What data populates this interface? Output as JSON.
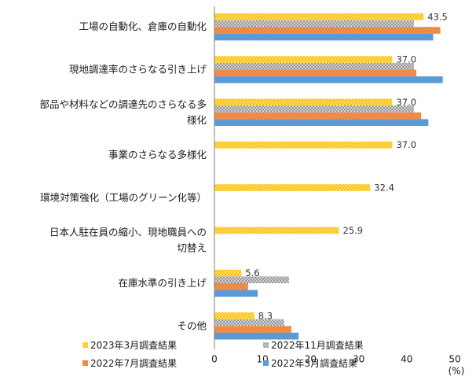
{
  "chart_data": {
    "type": "bar",
    "orientation": "horizontal",
    "categories": [
      [
        "工場の自動化、倉庫の自動化"
      ],
      [
        "現地調達率のさらなる引き上げ"
      ],
      [
        "部品や材料などの調達先のさらなる多",
        "様化"
      ],
      [
        "事業のさらなる多様化"
      ],
      [
        "環境対策強化（工場のグリーン化等）"
      ],
      [
        "日本人駐在員の縮小、現地職員への",
        "切替え"
      ],
      [
        "在庫水準の引き上げ"
      ],
      [
        "その他"
      ]
    ],
    "series": [
      {
        "name": "2023年3月調査結果",
        "color": "#FFC000",
        "pattern": "dots",
        "values": [
          43.5,
          37.0,
          37.0,
          37.0,
          32.4,
          25.9,
          5.6,
          8.3
        ],
        "data_labels": [
          "43.5",
          "37.0",
          "37.0",
          "37.0",
          "32.4",
          "25.9",
          "5.6",
          "8.3"
        ]
      },
      {
        "name": "2022年11月調査結果",
        "color": "#A6A6A6",
        "pattern": "check",
        "values": [
          41.5,
          41.5,
          41.5,
          null,
          null,
          null,
          15.5,
          14.5
        ]
      },
      {
        "name": "2022年7月調査結果",
        "color": "#ED7D31",
        "pattern": "dots",
        "values": [
          47.0,
          42.0,
          43.0,
          null,
          null,
          null,
          7.0,
          16.0
        ]
      },
      {
        "name": "2022年3月調査結果",
        "color": "#5B9BD5",
        "pattern": "solid",
        "values": [
          45.5,
          47.5,
          44.5,
          null,
          null,
          null,
          9.0,
          17.5
        ]
      }
    ],
    "xlim": [
      0,
      50
    ],
    "xticks": [
      "0",
      "10",
      "20",
      "30",
      "40",
      "50"
    ],
    "unit_label": "(%)",
    "grid": false,
    "legend_position": "bottom"
  }
}
